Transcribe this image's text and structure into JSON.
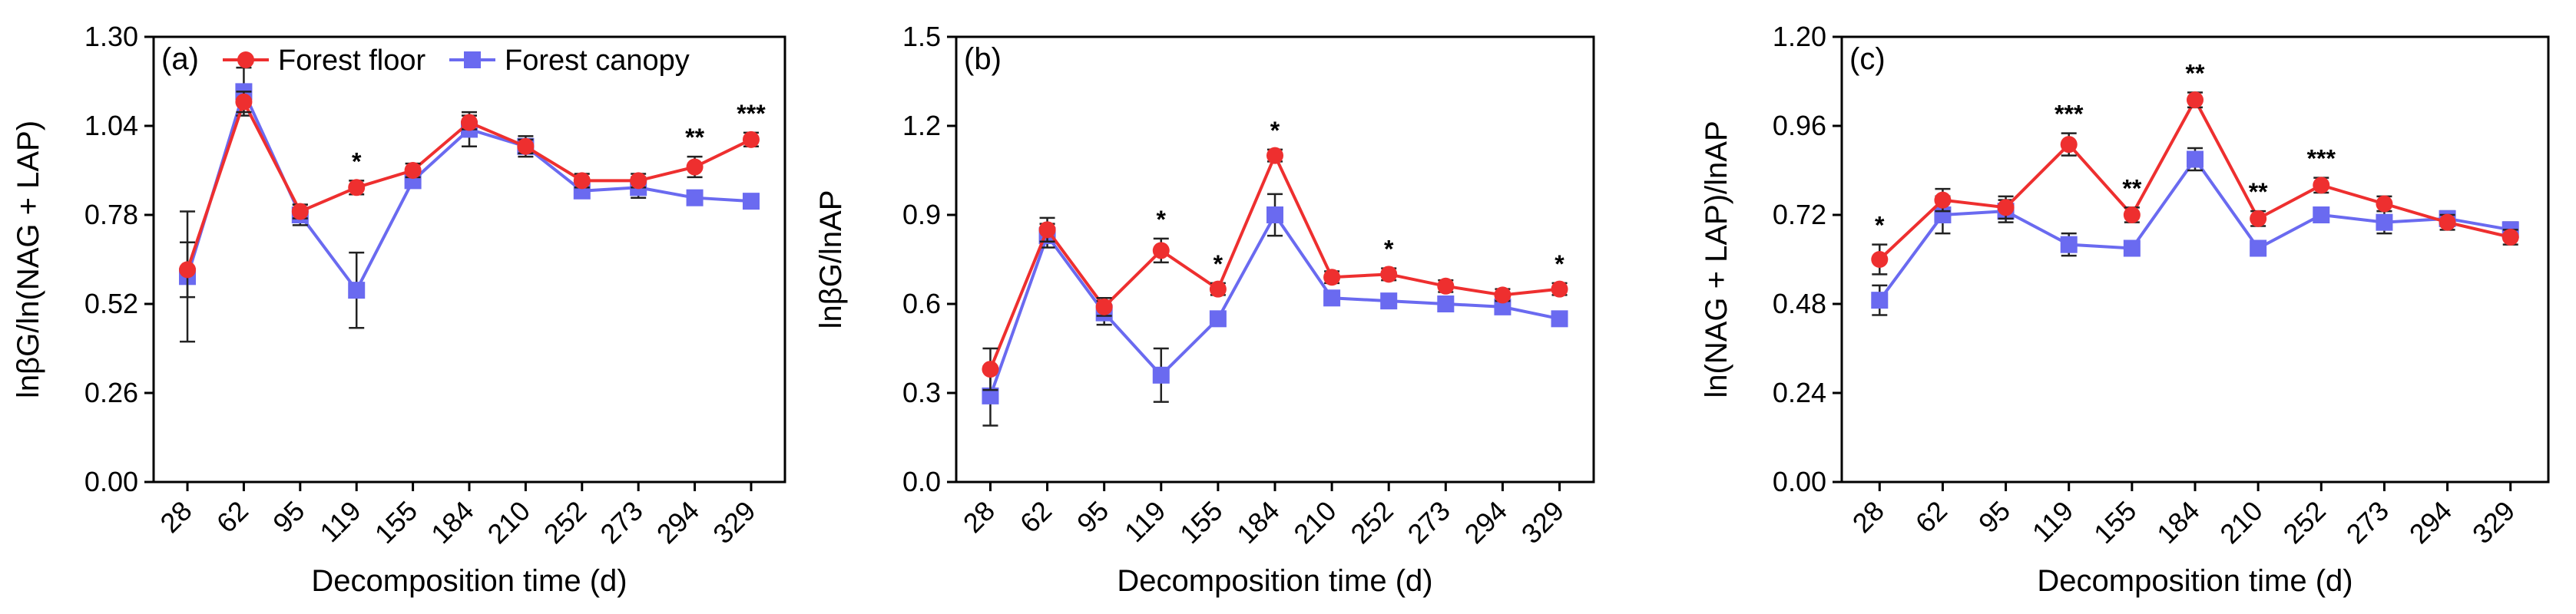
{
  "legend": {
    "series": [
      {
        "name": "Forest floor",
        "color": "#ee2f2f",
        "marker": "circle"
      },
      {
        "name": "Forest canopy",
        "color": "#6a6af0",
        "marker": "square"
      }
    ]
  },
  "chart_data": [
    {
      "type": "line",
      "panel_label": "(a)",
      "xlabel": "Decomposition time (d)",
      "ylabel": "lnβG/ln(NAG + LAP)",
      "categories": [
        "28",
        "62",
        "95",
        "119",
        "155",
        "184",
        "210",
        "252",
        "273",
        "294",
        "329"
      ],
      "ylim": [
        0,
        1.3
      ],
      "yticks": [
        "0.00",
        "0.26",
        "0.52",
        "0.78",
        "1.04",
        "1.30"
      ],
      "legend_position": "top-left",
      "series": [
        {
          "name": "Forest floor",
          "color": "#ee2f2f",
          "marker": "circle",
          "values": [
            0.62,
            1.11,
            0.79,
            0.86,
            0.91,
            1.05,
            0.98,
            0.88,
            0.88,
            0.92,
            1.0
          ],
          "errors": [
            0.08,
            0.03,
            0.02,
            0.02,
            0.02,
            0.02,
            0.02,
            0.02,
            0.02,
            0.03,
            0.02
          ]
        },
        {
          "name": "Forest canopy",
          "color": "#6a6af0",
          "marker": "square",
          "values": [
            0.6,
            1.14,
            0.78,
            0.56,
            0.88,
            1.03,
            0.98,
            0.85,
            0.86,
            0.83,
            0.82
          ],
          "errors": [
            0.19,
            0.07,
            0.03,
            0.11,
            0.02,
            0.05,
            0.03,
            0.02,
            0.03,
            0.02,
            0.01
          ]
        }
      ],
      "significance": [
        "",
        "",
        "",
        "*",
        "",
        "",
        "",
        "",
        "",
        "**",
        "***"
      ]
    },
    {
      "type": "line",
      "panel_label": "(b)",
      "xlabel": "Decomposition time (d)",
      "ylabel": "lnβG/lnAP",
      "categories": [
        "28",
        "62",
        "95",
        "119",
        "155",
        "184",
        "210",
        "252",
        "273",
        "294",
        "329"
      ],
      "ylim": [
        0,
        1.5
      ],
      "yticks": [
        "0.0",
        "0.3",
        "0.6",
        "0.9",
        "1.2",
        "1.5"
      ],
      "series": [
        {
          "name": "Forest floor",
          "color": "#ee2f2f",
          "marker": "circle",
          "values": [
            0.38,
            0.85,
            0.59,
            0.78,
            0.65,
            1.1,
            0.69,
            0.7,
            0.66,
            0.63,
            0.65
          ],
          "errors": [
            0.07,
            0.04,
            0.03,
            0.04,
            0.02,
            0.02,
            0.02,
            0.02,
            0.02,
            0.02,
            0.02
          ]
        },
        {
          "name": "Forest canopy",
          "color": "#6a6af0",
          "marker": "square",
          "values": [
            0.29,
            0.83,
            0.57,
            0.36,
            0.55,
            0.9,
            0.62,
            0.61,
            0.6,
            0.59,
            0.55
          ],
          "errors": [
            0.1,
            0.04,
            0.04,
            0.09,
            0.02,
            0.07,
            0.02,
            0.02,
            0.02,
            0.02,
            0.02
          ]
        }
      ],
      "significance": [
        "",
        "",
        "",
        "*",
        "*",
        "*",
        "",
        "*",
        "",
        "",
        "*"
      ]
    },
    {
      "type": "line",
      "panel_label": "(c)",
      "xlabel": "Decomposition time (d)",
      "ylabel": "ln(NAG + LAP)/lnAP",
      "categories": [
        "28",
        "62",
        "95",
        "119",
        "155",
        "184",
        "210",
        "252",
        "273",
        "294",
        "329"
      ],
      "ylim": [
        0,
        1.2
      ],
      "yticks": [
        "0.00",
        "0.24",
        "0.48",
        "0.72",
        "0.96",
        "1.20"
      ],
      "series": [
        {
          "name": "Forest floor",
          "color": "#ee2f2f",
          "marker": "circle",
          "values": [
            0.6,
            0.76,
            0.74,
            0.91,
            0.72,
            1.03,
            0.71,
            0.8,
            0.75,
            0.7,
            0.66
          ],
          "errors": [
            0.04,
            0.03,
            0.03,
            0.03,
            0.02,
            0.02,
            0.02,
            0.02,
            0.02,
            0.02,
            0.02
          ]
        },
        {
          "name": "Forest canopy",
          "color": "#6a6af0",
          "marker": "square",
          "values": [
            0.49,
            0.72,
            0.73,
            0.64,
            0.63,
            0.87,
            0.63,
            0.72,
            0.7,
            0.71,
            0.68
          ],
          "errors": [
            0.04,
            0.05,
            0.03,
            0.03,
            0.02,
            0.03,
            0.02,
            0.02,
            0.03,
            0.02,
            0.02
          ]
        }
      ],
      "significance": [
        "*",
        "",
        "",
        "***",
        "**",
        "**",
        "**",
        "***",
        "",
        "",
        ""
      ]
    }
  ]
}
